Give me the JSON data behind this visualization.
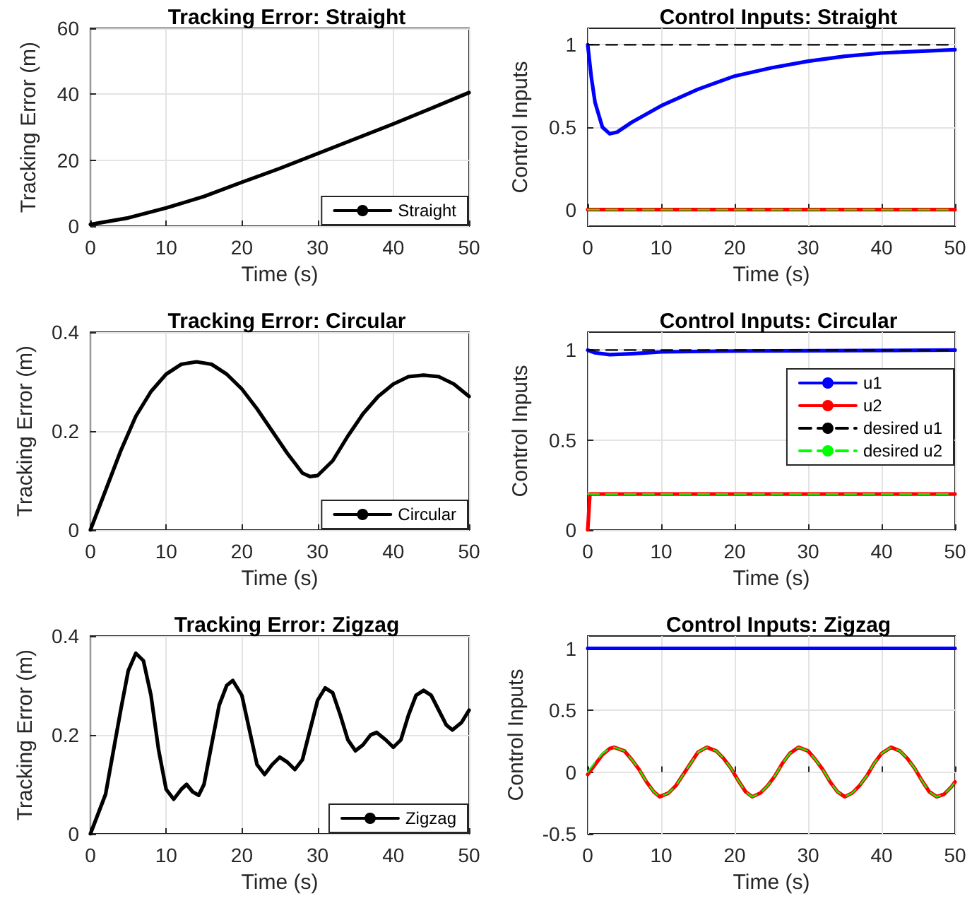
{
  "chart_data": [
    {
      "type": "line",
      "title": "Tracking Error: Straight",
      "xlabel": "Time (s)",
      "ylabel": "Tracking Error (m)",
      "xlim": [
        0,
        50
      ],
      "xticks": [
        0,
        10,
        20,
        30,
        40,
        50
      ],
      "ylim": [
        0,
        60
      ],
      "yticks": [
        0,
        20,
        40,
        60
      ],
      "grid": true,
      "legend": "bottom right",
      "marker": "none",
      "x": [
        0,
        5,
        10,
        15,
        20,
        25,
        30,
        35,
        40,
        45,
        50
      ],
      "series": [
        {
          "name": "Straight",
          "color": "#000000",
          "line_style": "solid",
          "values": [
            0.5,
            2.5,
            5.5,
            9,
            13.3,
            17.5,
            22,
            26.5,
            31,
            35.7,
            40.5
          ]
        }
      ]
    },
    {
      "type": "line",
      "title": "Control Inputs: Straight",
      "xlabel": "Time (s)",
      "ylabel": "Control Inputs",
      "xlim": [
        0,
        50
      ],
      "xticks": [
        0,
        10,
        20,
        30,
        40,
        50
      ],
      "ylim": [
        -0.1,
        1.1
      ],
      "yticks": [
        0,
        0.5,
        1
      ],
      "grid": true,
      "legend": false,
      "marker": "none",
      "series": [
        {
          "color": "#0000ff",
          "line_style": "solid",
          "x": [
            0,
            0.5,
            1,
            2,
            3,
            4,
            6,
            10,
            15,
            20,
            25,
            30,
            35,
            40,
            45,
            50
          ],
          "values": [
            1,
            0.8,
            0.65,
            0.5,
            0.46,
            0.47,
            0.53,
            0.63,
            0.73,
            0.81,
            0.86,
            0.9,
            0.93,
            0.95,
            0.96,
            0.97
          ]
        },
        {
          "color": "#ff0000",
          "line_style": "solid",
          "x": [
            0,
            50
          ],
          "values": [
            0,
            0
          ]
        },
        {
          "color": "#000000",
          "line_style": "dashed",
          "x": [
            0,
            50
          ],
          "values": [
            1,
            1
          ]
        },
        {
          "color": "#00ff00",
          "line_style": "dashed",
          "x": [
            0,
            50
          ],
          "values": [
            0,
            0
          ]
        }
      ]
    },
    {
      "type": "line",
      "title": "Tracking Error: Circular",
      "xlabel": "Time (s)",
      "ylabel": "Tracking Error (m)",
      "xlim": [
        0,
        50
      ],
      "xticks": [
        0,
        10,
        20,
        30,
        40,
        50
      ],
      "ylim": [
        0,
        0.4
      ],
      "yticks": [
        0,
        0.2,
        0.4
      ],
      "grid": true,
      "legend": "bottom right",
      "marker": "none",
      "x": [
        0,
        2,
        4,
        6,
        8,
        10,
        12,
        14,
        16,
        18,
        20,
        22,
        24,
        26,
        28,
        29,
        30,
        32,
        34,
        36,
        38,
        40,
        42,
        44,
        46,
        48,
        50
      ],
      "series": [
        {
          "name": "Circular",
          "color": "#000000",
          "line_style": "solid",
          "values": [
            0,
            0.08,
            0.16,
            0.23,
            0.28,
            0.315,
            0.335,
            0.34,
            0.335,
            0.315,
            0.285,
            0.245,
            0.2,
            0.155,
            0.115,
            0.108,
            0.11,
            0.14,
            0.19,
            0.235,
            0.27,
            0.295,
            0.31,
            0.313,
            0.31,
            0.295,
            0.27
          ]
        }
      ]
    },
    {
      "type": "line",
      "title": "Control Inputs: Circular",
      "xlabel": "Time (s)",
      "ylabel": "Control Inputs",
      "xlim": [
        0,
        50
      ],
      "xticks": [
        0,
        10,
        20,
        30,
        40,
        50
      ],
      "ylim": [
        0,
        1.1
      ],
      "yticks": [
        0,
        0.5,
        1
      ],
      "grid": true,
      "legend": "top right",
      "marker": "none",
      "series": [
        {
          "name": "u1",
          "color": "#0000ff",
          "line_style": "solid",
          "x": [
            0,
            1,
            3,
            6,
            10,
            20,
            50
          ],
          "values": [
            1,
            0.985,
            0.975,
            0.98,
            0.99,
            0.995,
            1
          ]
        },
        {
          "name": "u2",
          "color": "#ff0000",
          "line_style": "solid",
          "x": [
            0,
            0.3,
            50
          ],
          "values": [
            0,
            0.2,
            0.2
          ]
        },
        {
          "name": "desired u1",
          "color": "#000000",
          "line_style": "dashed",
          "x": [
            0,
            50
          ],
          "values": [
            1,
            1
          ]
        },
        {
          "name": "desired u2",
          "color": "#00ff00",
          "line_style": "dashed",
          "x": [
            0,
            50
          ],
          "values": [
            0.2,
            0.2
          ]
        }
      ]
    },
    {
      "type": "line",
      "title": "Tracking Error: Zigzag",
      "xlabel": "Time (s)",
      "ylabel": "Tracking Error (m)",
      "xlim": [
        0,
        50
      ],
      "xticks": [
        0,
        10,
        20,
        30,
        40,
        50
      ],
      "ylim": [
        0,
        0.4
      ],
      "yticks": [
        0,
        0.2,
        0.4
      ],
      "grid": true,
      "legend": "bottom right",
      "marker": "none",
      "x": [
        0,
        2,
        4,
        5,
        6,
        7,
        8,
        9,
        10,
        11,
        12,
        12.7,
        13.5,
        14.3,
        15,
        16,
        17,
        18,
        18.8,
        20,
        21,
        22,
        23,
        24,
        25,
        26,
        27,
        28,
        29,
        30,
        31,
        32,
        33,
        34,
        35,
        36,
        37,
        37.8,
        39,
        40,
        41,
        42,
        43,
        44,
        45,
        46,
        47,
        47.8,
        49,
        50
      ],
      "series": [
        {
          "name": "Zigzag",
          "color": "#000000",
          "line_style": "solid",
          "values": [
            0,
            0.08,
            0.25,
            0.33,
            0.365,
            0.35,
            0.28,
            0.17,
            0.09,
            0.07,
            0.09,
            0.1,
            0.085,
            0.078,
            0.1,
            0.18,
            0.26,
            0.3,
            0.31,
            0.28,
            0.21,
            0.14,
            0.12,
            0.14,
            0.155,
            0.145,
            0.13,
            0.15,
            0.21,
            0.27,
            0.295,
            0.285,
            0.24,
            0.19,
            0.168,
            0.18,
            0.2,
            0.205,
            0.19,
            0.175,
            0.19,
            0.24,
            0.28,
            0.29,
            0.28,
            0.25,
            0.22,
            0.21,
            0.225,
            0.25
          ]
        }
      ]
    },
    {
      "type": "line",
      "title": "Control Inputs: Zigzag",
      "xlabel": "Time (s)",
      "ylabel": "Control Inputs",
      "xlim": [
        0,
        50
      ],
      "xticks": [
        0,
        10,
        20,
        30,
        40,
        50
      ],
      "ylim": [
        -0.5,
        1.1
      ],
      "yticks": [
        -0.5,
        0,
        0.5,
        1
      ],
      "grid": true,
      "legend": false,
      "marker": "none",
      "series": [
        {
          "color": "#0000ff",
          "line_style": "solid",
          "x": [
            0,
            50
          ],
          "values": [
            1,
            1
          ]
        },
        {
          "color": "#00ff00",
          "line_style": "dashed",
          "x": [
            0,
            1,
            2,
            3,
            3.6,
            5,
            6,
            7,
            8,
            9,
            9.8,
            11,
            12,
            13,
            14,
            15,
            16.2,
            17.5,
            18.5,
            19.5,
            20.5,
            21.5,
            22.4,
            23.5,
            24.5,
            25.5,
            26.5,
            27.5,
            28.7,
            30,
            31,
            32,
            33,
            34,
            35,
            36,
            37,
            38,
            39,
            40,
            41.3,
            42.5,
            43.5,
            44.5,
            45.5,
            46.5,
            47.5,
            48.5,
            49.5,
            50
          ],
          "values": [
            0,
            0.08,
            0.15,
            0.19,
            0.2,
            0.17,
            0.1,
            0.02,
            -0.08,
            -0.16,
            -0.2,
            -0.17,
            -0.11,
            -0.02,
            0.07,
            0.16,
            0.2,
            0.17,
            0.11,
            0.03,
            -0.07,
            -0.16,
            -0.2,
            -0.17,
            -0.11,
            -0.03,
            0.07,
            0.15,
            0.2,
            0.17,
            0.1,
            0.02,
            -0.08,
            -0.16,
            -0.2,
            -0.17,
            -0.11,
            -0.03,
            0.07,
            0.15,
            0.2,
            0.17,
            0.11,
            0.03,
            -0.07,
            -0.16,
            -0.2,
            -0.18,
            -0.12,
            -0.08
          ]
        },
        {
          "color": "#ff0000",
          "line_style": "solid",
          "x": [
            0,
            1,
            2,
            3,
            3.6,
            5,
            6,
            7,
            8,
            9,
            9.8,
            11,
            12,
            13,
            14,
            15,
            16.2,
            17.5,
            18.5,
            19.5,
            20.5,
            21.5,
            22.4,
            23.5,
            24.5,
            25.5,
            26.5,
            27.5,
            28.7,
            30,
            31,
            32,
            33,
            34,
            35,
            36,
            37,
            38,
            39,
            40,
            41.3,
            42.5,
            43.5,
            44.5,
            45.5,
            46.5,
            47.5,
            48.5,
            49.5,
            50
          ],
          "values": [
            -0.02,
            0.06,
            0.14,
            0.19,
            0.2,
            0.17,
            0.1,
            0.02,
            -0.08,
            -0.16,
            -0.2,
            -0.17,
            -0.11,
            -0.02,
            0.07,
            0.16,
            0.2,
            0.17,
            0.11,
            0.03,
            -0.07,
            -0.16,
            -0.2,
            -0.17,
            -0.11,
            -0.03,
            0.07,
            0.15,
            0.2,
            0.17,
            0.1,
            0.02,
            -0.08,
            -0.16,
            -0.2,
            -0.17,
            -0.11,
            -0.03,
            0.07,
            0.15,
            0.2,
            0.17,
            0.11,
            0.03,
            -0.07,
            -0.16,
            -0.2,
            -0.18,
            -0.12,
            -0.08
          ]
        }
      ]
    }
  ]
}
